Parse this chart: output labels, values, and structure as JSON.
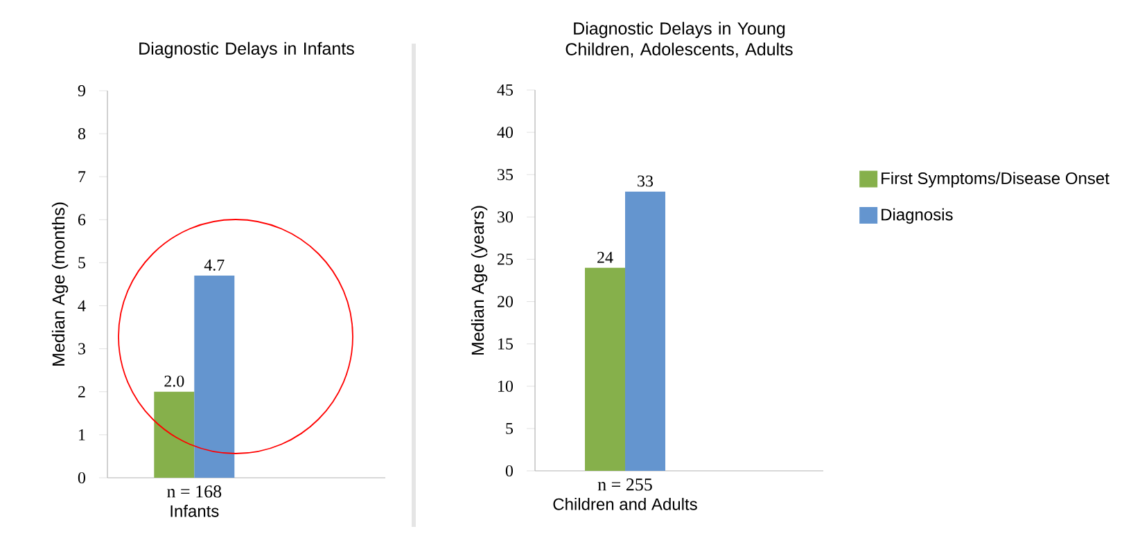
{
  "chart_data": [
    {
      "type": "bar",
      "title": "Diagnostic Delays in Infants",
      "ylabel": "Median Age (months)",
      "categories": [
        "Infants"
      ],
      "annotations": [
        "n = 168"
      ],
      "series": [
        {
          "color": "#86b04b",
          "values": [
            2.0
          ],
          "value_labels": [
            "2.0"
          ]
        },
        {
          "color": "#6495cf",
          "values": [
            4.7
          ],
          "value_labels": [
            "4.7"
          ]
        }
      ],
      "ylim": [
        0,
        9
      ],
      "yticks": [
        0,
        1,
        2,
        3,
        4,
        5,
        6,
        7,
        8,
        9
      ],
      "legend": false
    },
    {
      "type": "bar",
      "title": "Diagnostic Delays in Young Children, Adolescents, Adults",
      "ylabel": "Median Age (years)",
      "categories": [
        "Children and Adults"
      ],
      "annotations": [
        "n = 255"
      ],
      "series": [
        {
          "name": "First Symptoms/Disease Onset",
          "color": "#86b04b",
          "values": [
            24
          ]
        },
        {
          "name": "Diagnosis",
          "color": "#6495cf",
          "values": [
            33
          ]
        }
      ],
      "ylim": [
        0,
        45
      ],
      "yticks": [
        0,
        5,
        10,
        15,
        20,
        25,
        30,
        35,
        40,
        45
      ],
      "data_labels": true,
      "legend": "right"
    }
  ]
}
